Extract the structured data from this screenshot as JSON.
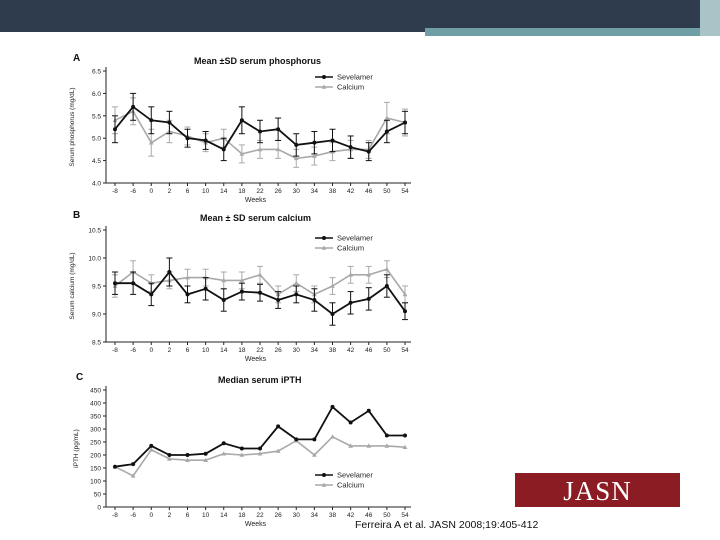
{
  "slide": {
    "logo": "JASN",
    "citation": "Ferreira A et al. JASN 2008;19:405-412",
    "colors": {
      "bar_dark": "#2f3c4d",
      "bar_teal": "#6f9ea4",
      "bar_light": "#a9c4c6",
      "logo_bg": "#8b1c23"
    }
  },
  "panels": [
    {
      "letter": "A",
      "title": "Mean ±SD serum phosphorus"
    },
    {
      "letter": "B",
      "title": "Mean ± SD serum calcium"
    },
    {
      "letter": "C",
      "title": "Median serum iPTH"
    }
  ],
  "chart_data": [
    {
      "type": "line",
      "title": "Mean ±SD serum phosphorus",
      "xlabel": "Weeks",
      "ylabel": "Serum phosphorus (mg/dL)",
      "x_ticks": [
        "-8",
        "-6",
        "0",
        "2",
        "6",
        "10",
        "14",
        "18",
        "22",
        "26",
        "30",
        "34",
        "38",
        "42",
        "46",
        "50",
        "54"
      ],
      "y_ticks": [
        "4.0",
        "4.5",
        "5.0",
        "5.5",
        "6.0",
        "6.5"
      ],
      "ylim": [
        4.0,
        6.5
      ],
      "grid": false,
      "legend_position": "top-right",
      "series": [
        {
          "name": "Sevelamer",
          "color": "#111111",
          "marker": "circle",
          "values": [
            5.2,
            5.7,
            5.4,
            5.35,
            5.0,
            4.95,
            4.75,
            5.4,
            5.15,
            5.2,
            4.85,
            4.9,
            4.95,
            4.8,
            4.7,
            5.15,
            5.35
          ],
          "errors": [
            0.3,
            0.3,
            0.3,
            0.25,
            0.2,
            0.2,
            0.25,
            0.3,
            0.25,
            0.25,
            0.25,
            0.25,
            0.25,
            0.25,
            0.2,
            0.25,
            0.25
          ]
        },
        {
          "name": "Calcium",
          "color": "#a9a9a9",
          "marker": "triangle",
          "values": [
            5.4,
            5.6,
            4.9,
            5.15,
            5.05,
            4.9,
            5.0,
            4.65,
            4.75,
            4.75,
            4.55,
            4.6,
            4.7,
            4.75,
            4.75,
            5.45,
            5.35
          ],
          "errors": [
            0.3,
            0.3,
            0.3,
            0.25,
            0.2,
            0.2,
            0.2,
            0.2,
            0.2,
            0.2,
            0.2,
            0.2,
            0.2,
            0.2,
            0.2,
            0.35,
            0.3
          ]
        }
      ]
    },
    {
      "type": "line",
      "title": "Mean ± SD serum calcium",
      "xlabel": "Weeks",
      "ylabel": "Serum calcium (mg/dL)",
      "x_ticks": [
        "-8",
        "-6",
        "0",
        "2",
        "6",
        "10",
        "14",
        "18",
        "22",
        "26",
        "30",
        "34",
        "38",
        "42",
        "46",
        "50",
        "54"
      ],
      "y_ticks": [
        "8.5",
        "9.0",
        "9.5",
        "10.0",
        "10.5"
      ],
      "ylim": [
        8.5,
        10.5
      ],
      "grid": false,
      "legend_position": "top-right",
      "series": [
        {
          "name": "Sevelamer",
          "color": "#111111",
          "marker": "circle",
          "values": [
            9.55,
            9.55,
            9.35,
            9.75,
            9.35,
            9.45,
            9.25,
            9.4,
            9.38,
            9.25,
            9.35,
            9.25,
            9.0,
            9.2,
            9.27,
            9.5,
            9.05
          ],
          "errors": [
            0.2,
            0.2,
            0.2,
            0.25,
            0.15,
            0.2,
            0.2,
            0.15,
            0.15,
            0.15,
            0.15,
            0.2,
            0.2,
            0.2,
            0.2,
            0.2,
            0.15
          ]
        },
        {
          "name": "Calcium",
          "color": "#a9a9a9",
          "marker": "triangle",
          "values": [
            9.5,
            9.75,
            9.55,
            9.6,
            9.65,
            9.65,
            9.6,
            9.6,
            9.7,
            9.35,
            9.55,
            9.35,
            9.5,
            9.7,
            9.7,
            9.8,
            9.35
          ],
          "errors": [
            0.2,
            0.2,
            0.15,
            0.15,
            0.15,
            0.15,
            0.15,
            0.15,
            0.15,
            0.15,
            0.15,
            0.15,
            0.15,
            0.15,
            0.15,
            0.15,
            0.15
          ]
        }
      ]
    },
    {
      "type": "line",
      "title": "Median serum iPTH",
      "xlabel": "Weeks",
      "ylabel": "iPTH (pg/mL)",
      "x_ticks": [
        "-8",
        "-6",
        "0",
        "2",
        "6",
        "10",
        "14",
        "18",
        "22",
        "26",
        "30",
        "34",
        "38",
        "42",
        "46",
        "50",
        "54"
      ],
      "y_ticks": [
        "0",
        "50",
        "100",
        "150",
        "200",
        "250",
        "300",
        "350",
        "400",
        "450"
      ],
      "ylim": [
        0,
        450
      ],
      "grid": false,
      "legend_position": "bottom-right",
      "series": [
        {
          "name": "Sevelamer",
          "color": "#111111",
          "marker": "circle",
          "values": [
            155,
            165,
            235,
            200,
            200,
            205,
            245,
            225,
            225,
            310,
            260,
            260,
            385,
            325,
            370,
            275,
            275
          ]
        },
        {
          "name": "Calcium",
          "color": "#a9a9a9",
          "marker": "triangle",
          "values": [
            155,
            120,
            220,
            185,
            180,
            180,
            205,
            200,
            205,
            215,
            255,
            200,
            270,
            235,
            235,
            235,
            230
          ]
        }
      ]
    }
  ]
}
